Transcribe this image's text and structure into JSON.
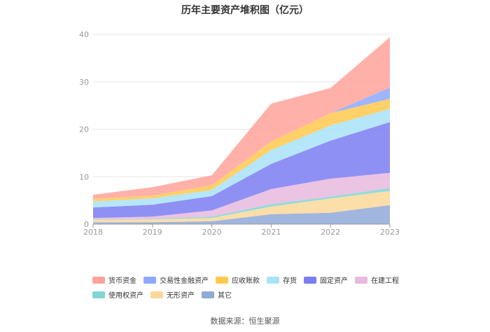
{
  "chart_data": {
    "type": "area",
    "stacked": true,
    "title": "历年主要资产堆积图（亿元）",
    "x": [
      "2018",
      "2019",
      "2020",
      "2021",
      "2022",
      "2023"
    ],
    "ylim": [
      0,
      40
    ],
    "yticks": [
      0,
      10,
      20,
      30,
      40
    ],
    "legend_position": "bottom",
    "series": [
      {
        "name": "其它",
        "color": "#8fa9d8",
        "values": [
          0.4,
          0.4,
          0.6,
          2.1,
          2.4,
          4.0
        ]
      },
      {
        "name": "无形资产",
        "color": "#fbd89a",
        "values": [
          0.5,
          0.6,
          0.7,
          1.6,
          3.0,
          3.0
        ]
      },
      {
        "name": "使用权资产",
        "color": "#7fd6d4",
        "values": [
          0.1,
          0.1,
          0.3,
          0.5,
          0.4,
          0.6
        ]
      },
      {
        "name": "在建工程",
        "color": "#e8b9de",
        "values": [
          0.3,
          0.5,
          1.3,
          3.2,
          3.8,
          3.2
        ]
      },
      {
        "name": "固定资产",
        "color": "#7b7df2",
        "values": [
          2.2,
          2.5,
          3.0,
          5.3,
          8.0,
          10.7
        ]
      },
      {
        "name": "存货",
        "color": "#a8e2f8",
        "values": [
          1.3,
          1.3,
          1.3,
          2.9,
          3.2,
          2.8
        ]
      },
      {
        "name": "应收账款",
        "color": "#ffc94d",
        "values": [
          0.5,
          0.6,
          1.0,
          1.8,
          2.6,
          2.1
        ]
      },
      {
        "name": "交易性金融资产",
        "color": "#8fa8ff",
        "values": [
          0.0,
          0.0,
          0.0,
          0.0,
          0.0,
          2.4
        ]
      },
      {
        "name": "货币资金",
        "color": "#ffa39a",
        "values": [
          0.9,
          1.8,
          2.1,
          8.0,
          5.3,
          10.6
        ]
      }
    ]
  },
  "legend_order": [
    [
      "货币资金",
      "交易性金融资产",
      "应收账款",
      "存货",
      "固定资产",
      "在建工程"
    ],
    [
      "使用权资产",
      "无形资产",
      "其它"
    ]
  ],
  "source_text": "数据来源：恒生聚源"
}
